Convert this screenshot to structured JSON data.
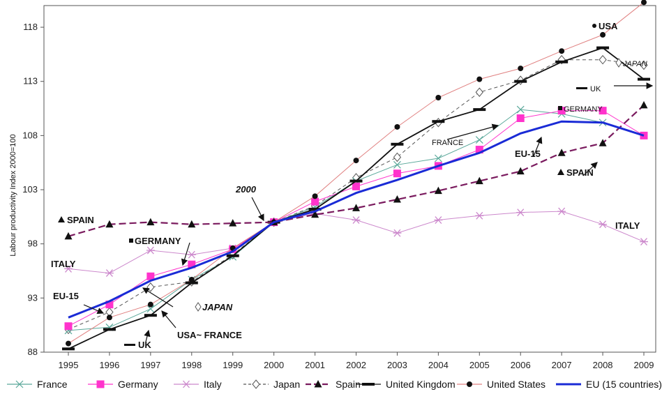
{
  "chart_data": {
    "type": "line",
    "ylabel": "Labour productivity Index 2000=100",
    "x": [
      "1995",
      "1996",
      "1997",
      "1998",
      "1999",
      "2000",
      "2001",
      "2002",
      "2003",
      "2004",
      "2005",
      "2006",
      "2007",
      "2008",
      "2009"
    ],
    "ylim": [
      88,
      120
    ],
    "yticks": [
      "88",
      "93",
      "98",
      "103",
      "108",
      "113",
      "118"
    ],
    "grid": false,
    "legend_position": "bottom",
    "series": [
      {
        "name": "France",
        "color": "#5aa89a",
        "marker": "x",
        "dash": "solid",
        "values": [
          90.0,
          90.3,
          92.0,
          94.7,
          96.8,
          100.0,
          101.4,
          103.8,
          105.3,
          105.9,
          107.6,
          110.4,
          110.0,
          109.2,
          108.0
        ]
      },
      {
        "name": "Germany",
        "color": "#ff33cc",
        "marker": "square",
        "dash": "solid",
        "values": [
          90.4,
          92.4,
          95.0,
          96.1,
          97.5,
          100.0,
          101.9,
          103.3,
          104.5,
          105.2,
          106.7,
          109.6,
          110.3,
          110.3,
          108.0
        ]
      },
      {
        "name": "Italy",
        "color": "#cc88cc",
        "marker": "star",
        "dash": "solid",
        "values": [
          95.7,
          95.3,
          97.4,
          97.0,
          97.6,
          100.0,
          100.8,
          100.2,
          99.0,
          100.2,
          100.6,
          100.9,
          101.0,
          99.8,
          98.2
        ]
      },
      {
        "name": "Japan",
        "color": "#555555",
        "marker": "diamond",
        "dash": "dashed",
        "values": [
          90.1,
          91.7,
          94.0,
          94.5,
          97.0,
          100.0,
          101.5,
          104.1,
          106.0,
          109.2,
          112.0,
          113.1,
          115.0,
          115.0,
          114.5
        ]
      },
      {
        "name": "Spain",
        "color": "#7a1a5e",
        "marker": "triangle",
        "dash": "dashed",
        "values": [
          98.7,
          99.8,
          100.0,
          99.8,
          99.9,
          100.0,
          100.7,
          101.3,
          102.1,
          102.9,
          103.8,
          104.7,
          106.4,
          107.3,
          110.8
        ]
      },
      {
        "name": "United Kingdom",
        "color": "#111111",
        "marker": "bar",
        "dash": "solid",
        "values": [
          88.3,
          90.1,
          91.4,
          94.4,
          96.9,
          100.0,
          101.2,
          103.8,
          107.2,
          109.3,
          110.4,
          113.0,
          114.8,
          116.1,
          113.2
        ]
      },
      {
        "name": "United States",
        "color": "#e08080",
        "marker": "dot",
        "dash": "solid",
        "values": [
          88.8,
          91.2,
          92.4,
          94.7,
          97.6,
          100.0,
          102.4,
          105.7,
          108.8,
          111.5,
          113.2,
          114.2,
          115.8,
          117.3,
          120.3
        ]
      },
      {
        "name": "EU (15 countries)",
        "color": "#1a2bd6",
        "marker": "none",
        "dash": "solid",
        "values": [
          91.2,
          92.7,
          94.6,
          95.8,
          97.3,
          100.0,
          101.0,
          102.7,
          103.9,
          105.2,
          106.4,
          108.2,
          109.3,
          109.2,
          108.0
        ]
      }
    ],
    "annotations": [
      {
        "id": "spain-left",
        "text": "SPAIN",
        "bold": true
      },
      {
        "id": "italy-left",
        "text": "ITALY",
        "bold": true
      },
      {
        "id": "eu15-left",
        "text": "EU-15",
        "bold": true
      },
      {
        "id": "germany-left",
        "text": "GERMANY",
        "bold": false
      },
      {
        "id": "japan-left",
        "text": "JAPAN",
        "bold": true,
        "italic": true
      },
      {
        "id": "usa-france-left",
        "text": "USA~ FRANCE",
        "bold": true
      },
      {
        "id": "uk-left",
        "text": "UK",
        "bold": true
      },
      {
        "id": "year-2000",
        "text": "2000",
        "bold": true,
        "italic": true
      },
      {
        "id": "france-mid",
        "text": "FRANCE",
        "bold": false
      },
      {
        "id": "eu15-right",
        "text": "EU-15",
        "bold": true
      },
      {
        "id": "spain-right",
        "text": "SPAIN",
        "bold": true
      },
      {
        "id": "germany-right",
        "text": "GERMANY",
        "bold": false
      },
      {
        "id": "uk-right",
        "text": "UK",
        "bold": false
      },
      {
        "id": "japan-right",
        "text": "JAPAN",
        "bold": false,
        "italic": true
      },
      {
        "id": "usa-right",
        "text": "USA",
        "bold": true
      },
      {
        "id": "italy-right",
        "text": "ITALY",
        "bold": true
      }
    ]
  }
}
